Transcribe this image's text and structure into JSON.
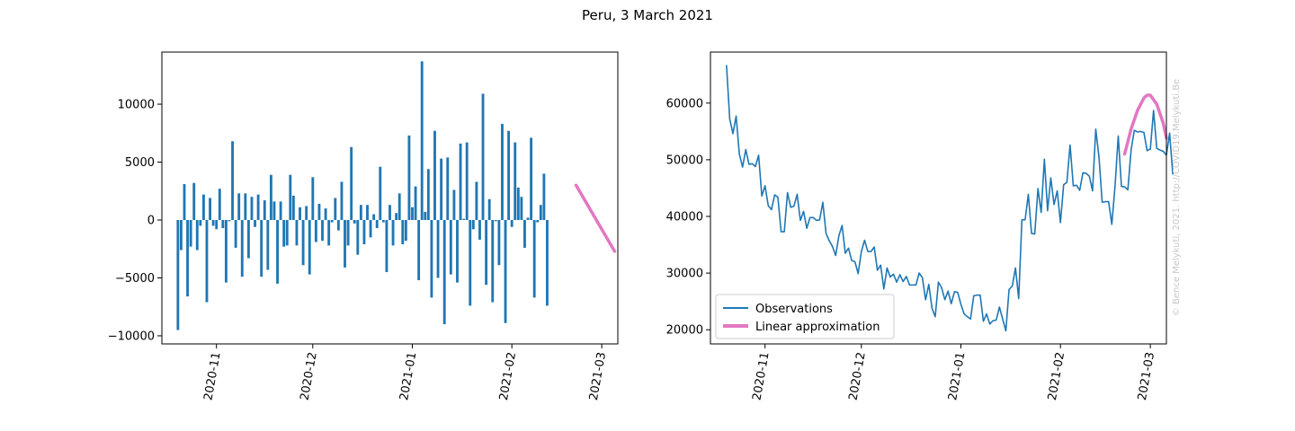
{
  "figure": {
    "title": "Peru, 3 March 2021",
    "watermark": "© Bence Melykuti, 2021. http://COVID19.Melykuti.Be"
  },
  "colors": {
    "observations": "#1f77b4",
    "approximation": "#e377c2"
  },
  "chart_data": [
    {
      "type": "bar",
      "title": "",
      "xlabel": "",
      "ylabel": "",
      "x_range": [
        "2020-10-15",
        "2021-03-06"
      ],
      "ylim": [
        -10700,
        14500
      ],
      "yticks": [
        -10000,
        -5000,
        0,
        5000,
        10000
      ],
      "ytick_labels": [
        "−10000",
        "−5000",
        "0",
        "5000",
        "10000"
      ],
      "xticks": [
        "2020-11-01",
        "2020-12-01",
        "2021-01-01",
        "2021-02-01",
        "2021-03-01"
      ],
      "xtick_labels": [
        "2020-11",
        "2020-12",
        "2021-01",
        "2021-02",
        "2021-03"
      ],
      "bars": {
        "start_date": "2020-10-20",
        "series_name": "",
        "values": [
          -9500,
          -2600,
          3100,
          -6600,
          -2300,
          3200,
          -2600,
          -500,
          2200,
          -7100,
          1900,
          -500,
          -800,
          2700,
          -700,
          -5400,
          -100,
          6800,
          -2400,
          2300,
          -4900,
          2300,
          -3300,
          2000,
          -600,
          2200,
          -4900,
          1700,
          -4300,
          3900,
          1600,
          -5500,
          1600,
          -2300,
          -2200,
          3900,
          2100,
          -2200,
          1100,
          -3900,
          1200,
          -4700,
          3700,
          -1900,
          1400,
          -1800,
          1000,
          -2200,
          -200,
          1900,
          -900,
          3300,
          -4100,
          -2200,
          6300,
          -300,
          -3000,
          1300,
          -2100,
          1300,
          -1500,
          500,
          -700,
          4600,
          -200,
          -4500,
          1300,
          -2200,
          600,
          2300,
          -2100,
          -1800,
          7300,
          1100,
          2900,
          -5200,
          13700,
          700,
          4400,
          -6700,
          7700,
          -5000,
          5300,
          -9000,
          5400,
          -4700,
          2600,
          -5400,
          6600,
          100,
          6700,
          -7400,
          -800,
          3300,
          -1700,
          10900,
          -5600,
          1800,
          -7100,
          -100,
          -3900,
          8300,
          -8900,
          7700,
          -600,
          6700,
          2800,
          2000,
          -2400,
          200,
          7100,
          -6700,
          -200,
          1300,
          4000,
          -7400
        ]
      },
      "approximation": {
        "series_name": "",
        "points": [
          [
            "2021-02-21",
            3000
          ],
          [
            "2021-03-05",
            -2700
          ]
        ]
      }
    },
    {
      "type": "line",
      "title": "",
      "xlabel": "",
      "ylabel": "",
      "x_range": [
        "2020-10-15",
        "2021-03-06"
      ],
      "ylim": [
        17500,
        69000
      ],
      "yticks": [
        20000,
        30000,
        40000,
        50000,
        60000
      ],
      "ytick_labels": [
        "20000",
        "30000",
        "40000",
        "50000",
        "60000"
      ],
      "xticks": [
        "2020-11-01",
        "2020-12-01",
        "2021-01-01",
        "2021-02-01",
        "2021-03-01"
      ],
      "xtick_labels": [
        "2020-11",
        "2020-12",
        "2021-01",
        "2021-02",
        "2021-03"
      ],
      "legend": {
        "position": "lower-left",
        "entries": [
          "Observations",
          "Linear approximation"
        ]
      },
      "observations": {
        "name": "Observations",
        "start_date": "2020-10-20",
        "values": [
          66700,
          57200,
          54600,
          57700,
          51000,
          48700,
          51800,
          49200,
          49300,
          48800,
          50800,
          43600,
          45400,
          41900,
          41200,
          43800,
          43400,
          37300,
          37300,
          44200,
          41600,
          41800,
          43900,
          39300,
          40900,
          37900,
          39800,
          39800,
          39300,
          39400,
          42500,
          37000,
          35700,
          34700,
          33100,
          36600,
          38400,
          33500,
          34400,
          32200,
          32000,
          29900,
          33800,
          35800,
          33800,
          33800,
          34600,
          30500,
          31400,
          27200,
          30900,
          29300,
          29800,
          28400,
          29700,
          28500,
          29400,
          27900,
          27900,
          27900,
          30000,
          29200,
          25300,
          28000,
          23800,
          22300,
          28400,
          27400,
          25300,
          26800,
          24600,
          26700,
          26600,
          24500,
          22800,
          22300,
          21900,
          26000,
          26100,
          26100,
          21500,
          22800,
          21000,
          21600,
          21700,
          24000,
          21900,
          19800,
          27100,
          27700,
          30900,
          25500,
          39400,
          39400,
          43900,
          37000,
          36900,
          44900,
          40700,
          50100,
          41000,
          46800,
          42100,
          44500,
          38900,
          45600,
          46000,
          52600,
          45400,
          45500,
          44600,
          47700,
          47600,
          47100,
          44500,
          55400,
          50500,
          42500,
          42600,
          42600,
          38600,
          45300,
          54200,
          45300,
          45200,
          44700,
          51700,
          55200,
          54900,
          55000,
          54800,
          51600,
          51900,
          58700,
          52000,
          51700,
          51500,
          50800,
          54700,
          47400
        ]
      },
      "approximation": {
        "name": "Linear approximation",
        "points": [
          [
            "2021-02-21",
            51000
          ],
          [
            "2021-02-23",
            55400
          ],
          [
            "2021-02-25",
            58700
          ],
          [
            "2021-02-27",
            60900
          ],
          [
            "2021-02-28",
            61400
          ],
          [
            "2021-03-01",
            61400
          ],
          [
            "2021-03-03",
            59800
          ],
          [
            "2021-03-05",
            56500
          ],
          [
            "2021-03-06",
            53800
          ]
        ]
      }
    }
  ]
}
